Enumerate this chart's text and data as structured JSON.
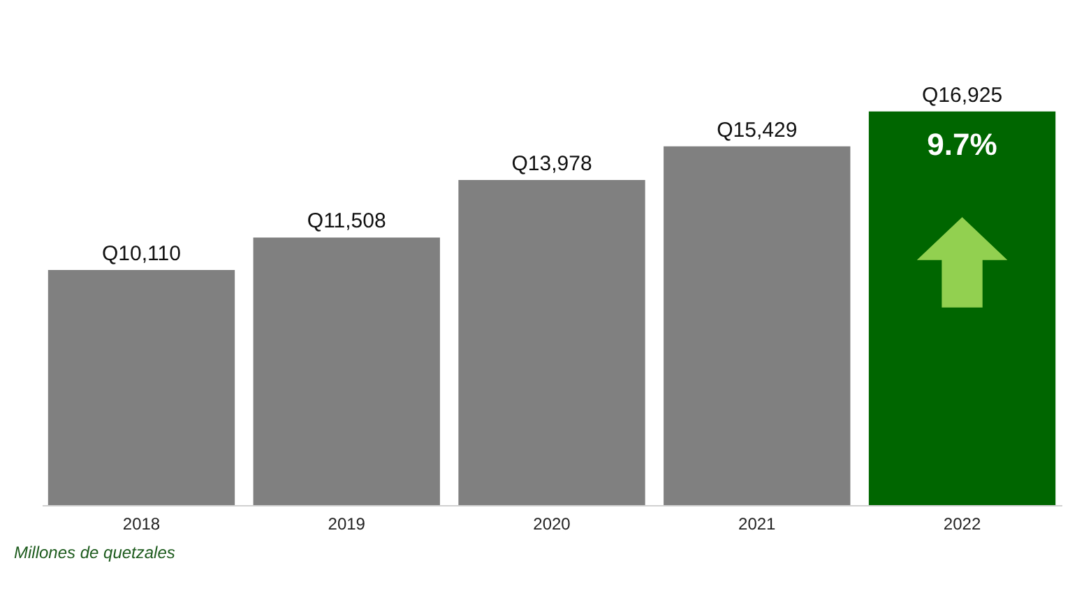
{
  "chart_data": {
    "type": "bar",
    "categories": [
      "2018",
      "2019",
      "2020",
      "2021",
      "2022"
    ],
    "values": [
      10110,
      11508,
      13978,
      15429,
      16925
    ],
    "colors": [
      "#808080",
      "#808080",
      "#808080",
      "#808080",
      "#006600"
    ],
    "value_labels": [
      "Q10,110",
      "Q11,508",
      "Q13,978",
      "Q15,429",
      "Q16,925"
    ],
    "tick_labels": "x",
    "annotations": [
      "9.7%",
      "Millones de quetzales"
    ]
  }
}
